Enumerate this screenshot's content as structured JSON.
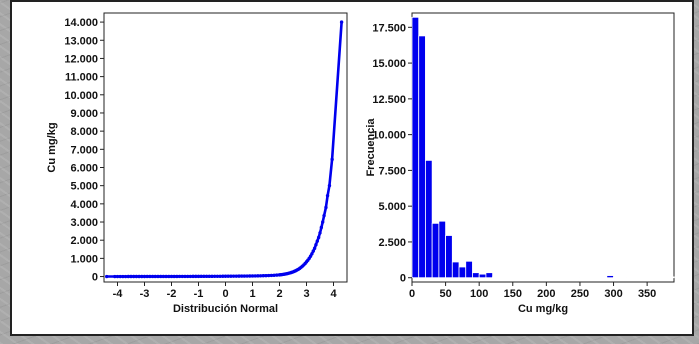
{
  "colors": {
    "series": "#0000ee",
    "axis": "#222222"
  },
  "chart_data": [
    {
      "type": "scatter",
      "xlabel": "Distribución Normal",
      "ylabel": "Cu mg/kg",
      "xlim": [
        -4.5,
        4.5
      ],
      "ylim": [
        -300,
        14500
      ],
      "x_ticks": [
        -4,
        -3,
        -2,
        -1,
        0,
        1,
        2,
        3,
        4
      ],
      "x_tick_labels": [
        "-4",
        "-3",
        "-2",
        "-1",
        "0",
        "1",
        "2",
        "3",
        "4"
      ],
      "y_ticks": [
        0,
        1000,
        2000,
        3000,
        4000,
        5000,
        6000,
        7000,
        8000,
        9000,
        10000,
        11000,
        12000,
        13000,
        14000
      ],
      "y_tick_labels": [
        "0",
        "1.000",
        "2.000",
        "3.000",
        "4.000",
        "5.000",
        "6.000",
        "7.000",
        "8.000",
        "9.000",
        "10.000",
        "11.000",
        "12.000",
        "13.000",
        "14.000"
      ],
      "points": [
        [
          4.3,
          14000
        ],
        [
          3.95,
          6450
        ],
        [
          3.85,
          5000
        ],
        [
          3.78,
          4450
        ],
        [
          3.72,
          3800
        ],
        [
          3.65,
          3350
        ],
        [
          3.6,
          3000
        ],
        [
          3.55,
          2700
        ],
        [
          3.5,
          2400
        ],
        [
          3.45,
          2150
        ],
        [
          3.4,
          1950
        ],
        [
          3.35,
          1750
        ],
        [
          3.3,
          1550
        ],
        [
          3.25,
          1400
        ],
        [
          3.2,
          1250
        ],
        [
          3.15,
          1120
        ],
        [
          3.1,
          1000
        ],
        [
          3.05,
          900
        ],
        [
          3.0,
          810
        ],
        [
          2.95,
          720
        ],
        [
          2.9,
          640
        ],
        [
          2.85,
          570
        ],
        [
          2.8,
          510
        ],
        [
          2.75,
          450
        ],
        [
          2.7,
          400
        ],
        [
          2.65,
          360
        ],
        [
          2.6,
          320
        ],
        [
          2.55,
          285
        ],
        [
          2.5,
          255
        ],
        [
          2.45,
          230
        ],
        [
          2.4,
          205
        ],
        [
          2.35,
          185
        ],
        [
          2.3,
          165
        ],
        [
          2.25,
          150
        ],
        [
          2.2,
          135
        ],
        [
          2.15,
          122
        ],
        [
          2.1,
          110
        ],
        [
          2.05,
          100
        ],
        [
          2.0,
          92
        ],
        [
          1.9,
          80
        ],
        [
          1.8,
          70
        ],
        [
          1.7,
          62
        ],
        [
          1.6,
          55
        ],
        [
          1.5,
          50
        ],
        [
          1.4,
          45
        ],
        [
          1.3,
          41
        ],
        [
          1.2,
          38
        ],
        [
          1.1,
          35
        ],
        [
          1.0,
          32
        ],
        [
          0.9,
          30
        ],
        [
          0.8,
          28
        ],
        [
          0.7,
          26
        ],
        [
          0.6,
          24
        ],
        [
          0.5,
          23
        ],
        [
          0.4,
          21
        ],
        [
          0.3,
          20
        ],
        [
          0.2,
          19
        ],
        [
          0.1,
          18
        ],
        [
          0.0,
          17
        ],
        [
          -0.1,
          16
        ],
        [
          -0.2,
          15
        ],
        [
          -0.3,
          14
        ],
        [
          -0.4,
          13
        ],
        [
          -0.5,
          12.5
        ],
        [
          -0.6,
          12
        ],
        [
          -0.7,
          11.5
        ],
        [
          -0.8,
          11
        ],
        [
          -0.9,
          10.5
        ],
        [
          -1.0,
          10
        ],
        [
          -1.1,
          9.5
        ],
        [
          -1.2,
          9
        ],
        [
          -1.3,
          8.5
        ],
        [
          -1.4,
          8
        ],
        [
          -1.5,
          7.5
        ],
        [
          -1.6,
          7
        ],
        [
          -1.7,
          6.5
        ],
        [
          -1.8,
          6
        ],
        [
          -1.9,
          5.8
        ],
        [
          -2.0,
          5.5
        ],
        [
          -2.1,
          5.2
        ],
        [
          -2.2,
          5
        ],
        [
          -2.3,
          4.7
        ],
        [
          -2.4,
          4.5
        ],
        [
          -2.5,
          4.2
        ],
        [
          -2.6,
          4
        ],
        [
          -2.7,
          3.8
        ],
        [
          -2.8,
          3.6
        ],
        [
          -2.9,
          3.4
        ],
        [
          -3.0,
          3.2
        ],
        [
          -3.1,
          3
        ],
        [
          -3.2,
          2.8
        ],
        [
          -3.3,
          2.6
        ],
        [
          -3.4,
          2.4
        ],
        [
          -3.5,
          2.2
        ],
        [
          -3.6,
          2
        ],
        [
          -3.7,
          1.8
        ],
        [
          -3.8,
          1.6
        ],
        [
          -3.9,
          1.4
        ],
        [
          -4.0,
          1.2
        ],
        [
          -4.1,
          1
        ],
        [
          -4.4,
          0.5
        ]
      ]
    },
    {
      "type": "bar",
      "xlabel": "Cu mg/kg",
      "ylabel": "Frecuencia",
      "xlim": [
        0,
        390
      ],
      "ylim": [
        -300,
        18500
      ],
      "bin_width": 10,
      "x_ticks": [
        0,
        50,
        100,
        150,
        200,
        250,
        300,
        350
      ],
      "x_tick_labels": [
        "0",
        "50",
        "100",
        "150",
        "200",
        "250",
        "300",
        "350"
      ],
      "y_ticks": [
        0,
        2500,
        5000,
        7500,
        10000,
        12500,
        15000,
        17500
      ],
      "y_tick_labels": [
        "0",
        "2.500",
        "5.000",
        "7.500",
        "10.000",
        "12.500",
        "15.000",
        "17.500"
      ],
      "bins": [
        0,
        10,
        20,
        30,
        40,
        50,
        60,
        70,
        80,
        90,
        100,
        110,
        120,
        130,
        140,
        150,
        160,
        170,
        180,
        190,
        200,
        210,
        220,
        230,
        240,
        250,
        260,
        270,
        280,
        290,
        300,
        310,
        320,
        330,
        340,
        350,
        360,
        370,
        380
      ],
      "values": [
        18200,
        16900,
        8200,
        3800,
        3950,
        2950,
        1100,
        750,
        1150,
        350,
        250,
        350,
        50,
        40,
        30,
        20,
        20,
        15,
        10,
        10,
        5,
        5,
        5,
        5,
        5,
        5,
        5,
        5,
        5,
        150,
        5,
        5,
        5,
        5,
        5,
        5,
        5,
        5,
        5
      ]
    }
  ]
}
